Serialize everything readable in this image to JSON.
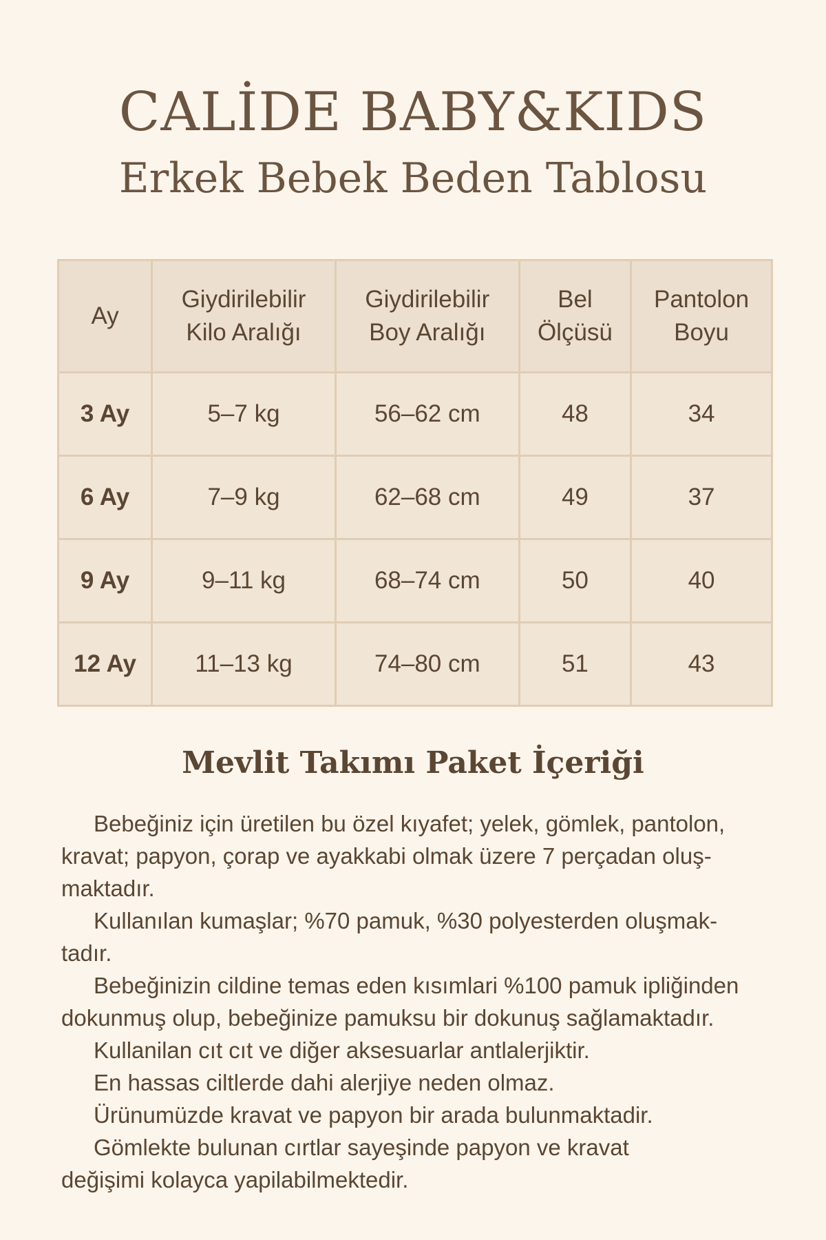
{
  "header": {
    "title": "CALİDE BABY&KIDS",
    "subtitle": "Erkek Bebek Beden Tablosu"
  },
  "table": {
    "columns": [
      [
        "Ay",
        ""
      ],
      [
        "Giydirilebilir",
        "Kilo Aralığı"
      ],
      [
        "Giydirilebilir",
        "Boy Aralığı"
      ],
      [
        "Bel",
        "Ölçüsü"
      ],
      [
        "Pantolon",
        "Boyu"
      ]
    ],
    "rows": [
      [
        "3 Ay",
        "5–7 kg",
        "56–62 cm",
        "48",
        "34"
      ],
      [
        "6 Ay",
        "7–9 kg",
        "62–68 cm",
        "49",
        "37"
      ],
      [
        "9 Ay",
        "9–11 kg",
        "68–74 cm",
        "50",
        "40"
      ],
      [
        "12 Ay",
        "11–13 kg",
        "74–80 cm",
        "51",
        "43"
      ]
    ]
  },
  "section": {
    "heading": "Mevlit Takımı Paket İçeriği",
    "lines": [
      "Bebeğiniz için üretilen bu özel kıyafet; yelek, gömlek, pantolon,",
      "kravat; papyon, çorap ve ayakkabi olmak üzere 7 perçadan oluş-",
      "maktadır.",
      "Kullanılan kumaşlar; %70 pamuk, %30 polyesterden oluşmak-",
      "tadır.",
      "Bebeğinizin cildine temas eden kısımlari %100 pamuk ipliğinden",
      "dokunmuş olup, bebeğinize pamuksu bir dokunuş sağlamaktadır.",
      "Kullanilan cıt cıt ve diğer aksesuarlar antlalerjiktir.",
      "En hassas ciltlerde dahi alerjiye neden olmaz.",
      "Ürünumüzde kravat ve papyon bir arada bulunmaktadir.",
      "Gömlekte bulunan cırtlar sayeşinde papyon ve kravat",
      "değişimi kolayca yapilabilmektedir."
    ],
    "indented": [
      0,
      3,
      5,
      7,
      8,
      9,
      10
    ]
  }
}
